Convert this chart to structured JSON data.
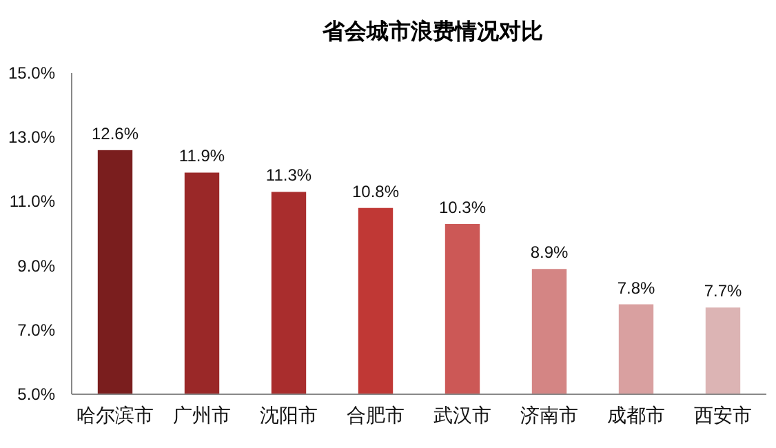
{
  "chart_data": {
    "type": "bar",
    "title": "省会城市浪费情况对比",
    "categories": [
      "哈尔滨市",
      "广州市",
      "沈阳市",
      "合肥市",
      "武汉市",
      "济南市",
      "成都市",
      "西安市"
    ],
    "values": [
      12.6,
      11.9,
      11.3,
      10.8,
      10.3,
      8.9,
      7.8,
      7.7
    ],
    "value_labels": [
      "12.6%",
      "11.9%",
      "11.3%",
      "10.8%",
      "10.3%",
      "8.9%",
      "7.8%",
      "7.7%"
    ],
    "colors": [
      "#7a1e1e",
      "#9a2828",
      "#a92d2d",
      "#c03835",
      "#cc5856",
      "#d48584",
      "#d9a0a0",
      "#dcb4b4"
    ],
    "ylim": [
      5,
      15
    ],
    "yticks": [
      {
        "value": 5,
        "label": "5.0%"
      },
      {
        "value": 7,
        "label": "7.0%"
      },
      {
        "value": 9,
        "label": "9.0%"
      },
      {
        "value": 11,
        "label": "11.0%"
      },
      {
        "value": 13,
        "label": "13.0%"
      },
      {
        "value": 15,
        "label": "15.0%"
      }
    ],
    "grid": false
  }
}
